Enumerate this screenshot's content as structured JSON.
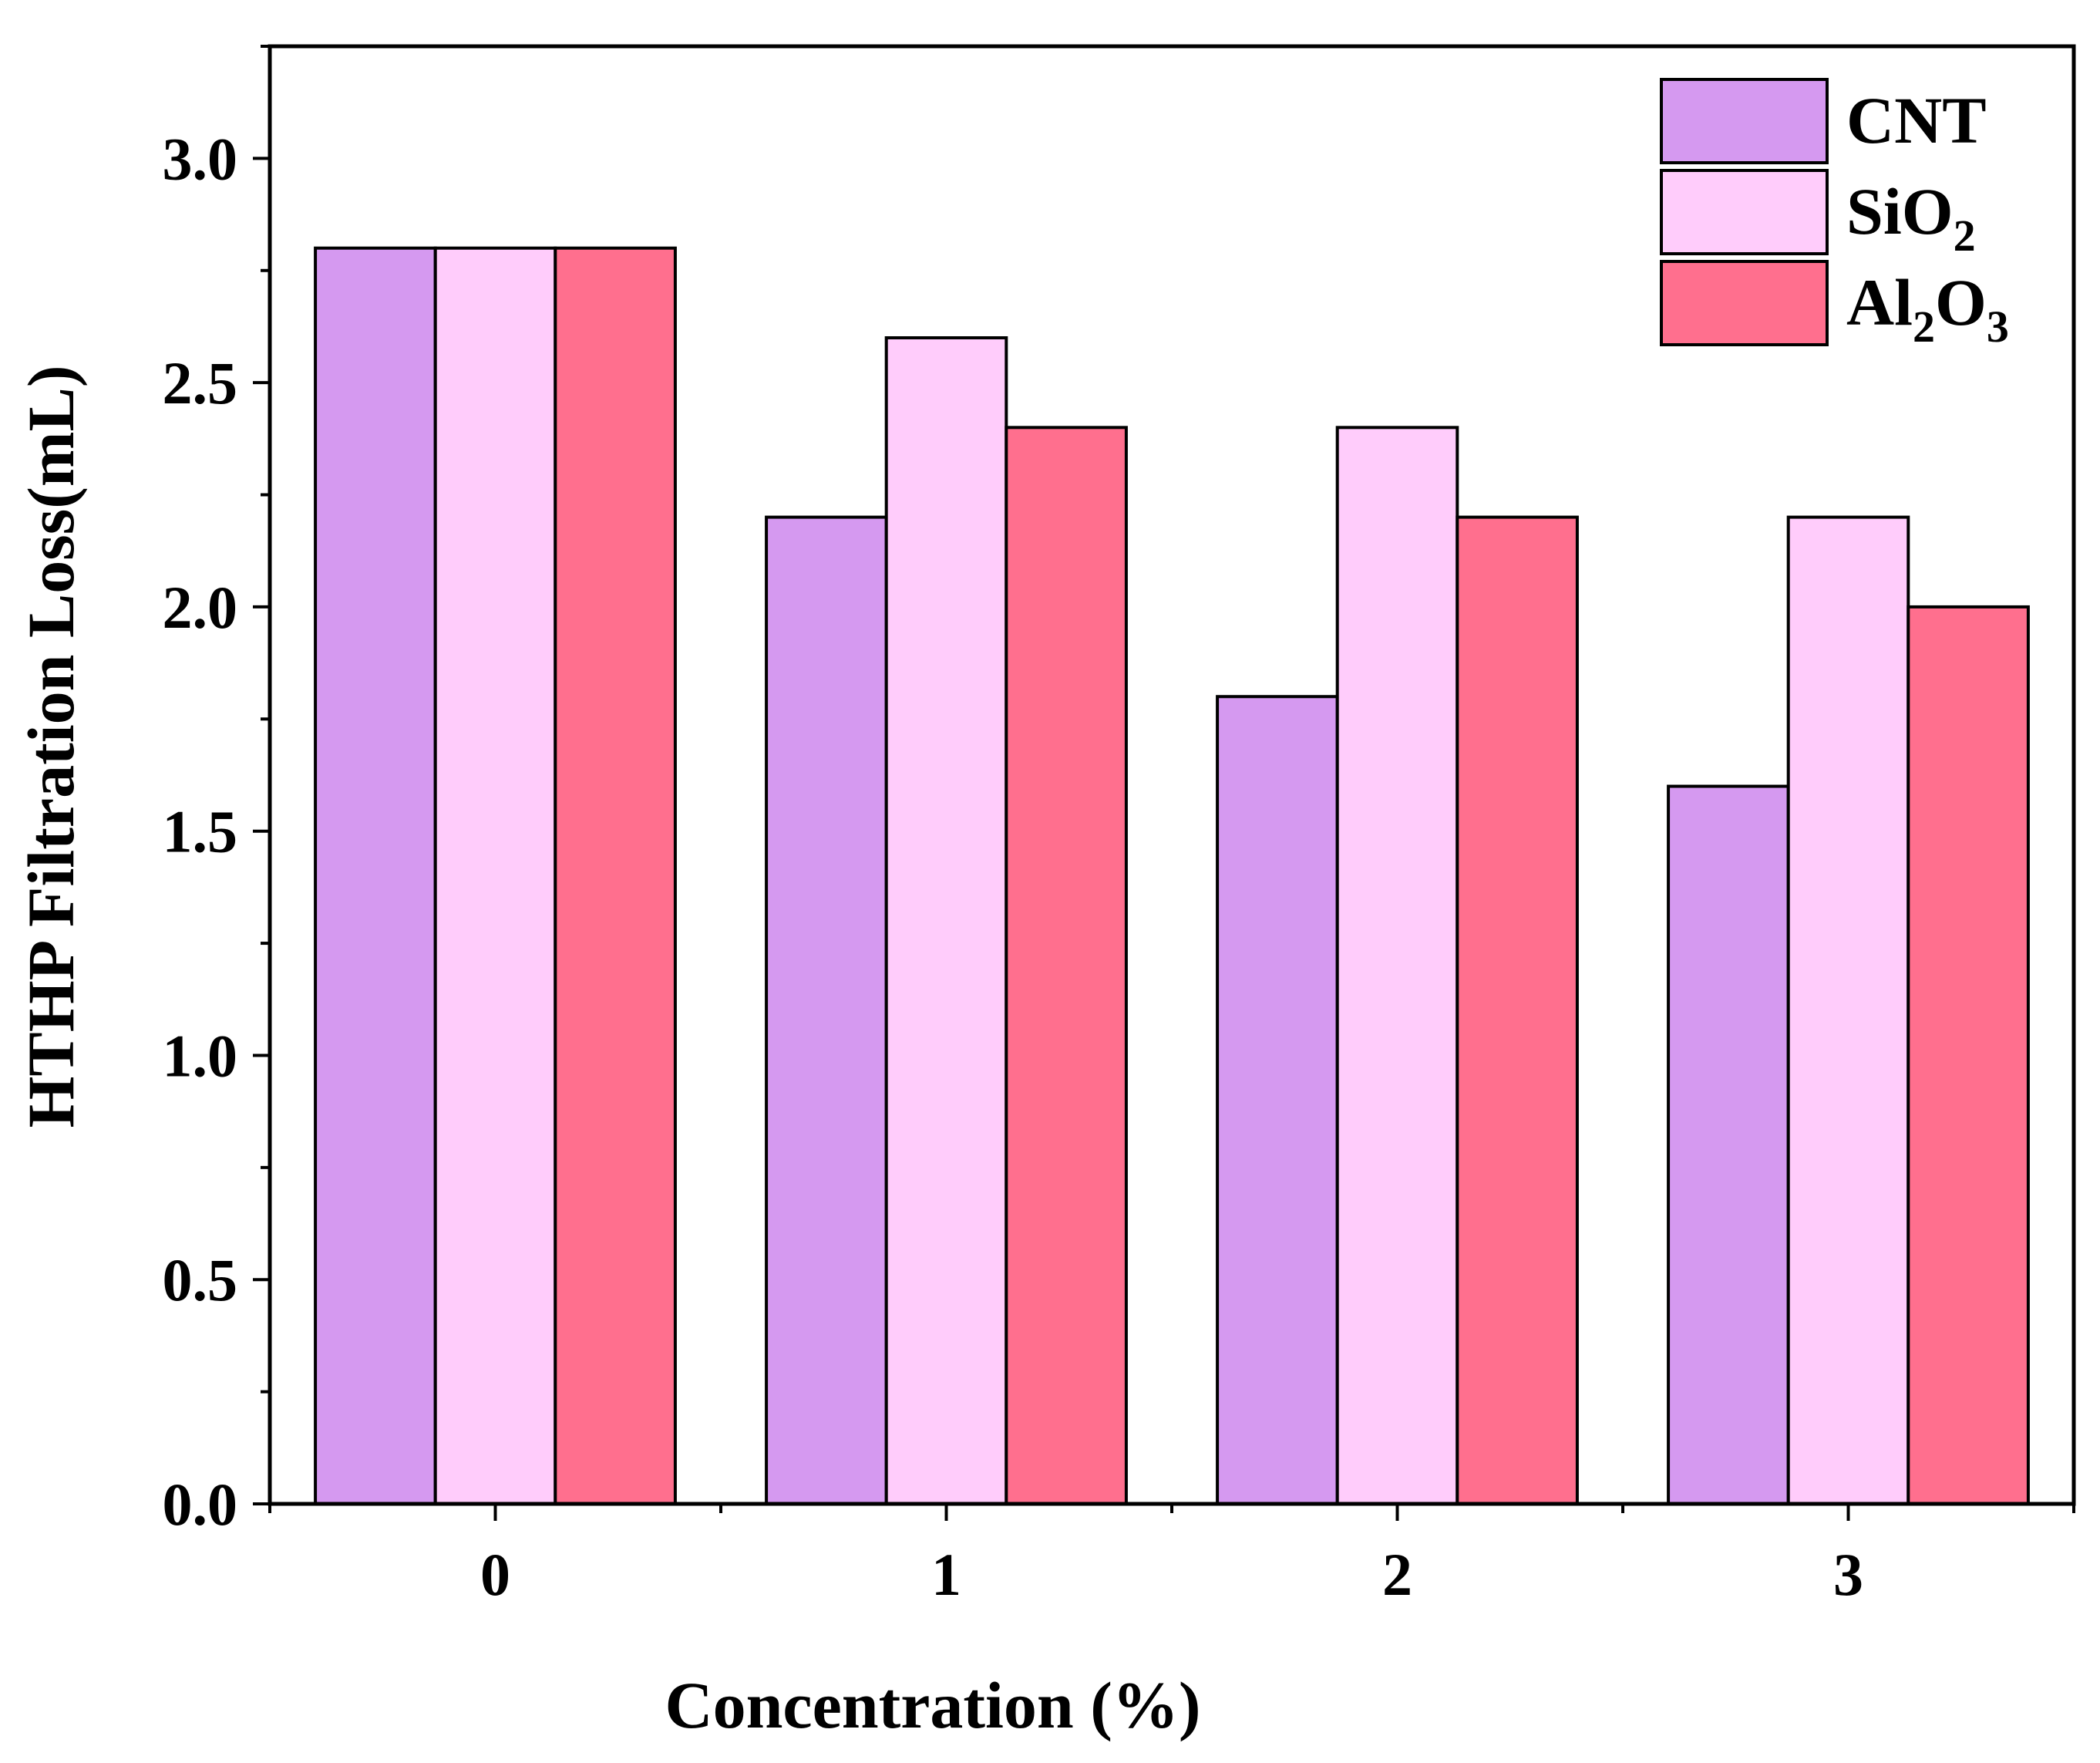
{
  "chart_data": {
    "type": "bar",
    "categories": [
      "0",
      "1",
      "2",
      "3"
    ],
    "series": [
      {
        "name": "CNT",
        "legend_main": "CNT",
        "legend_sub": "",
        "legend_tail": "",
        "legend_sub2": "",
        "color": "#D599F0",
        "values": [
          2.8,
          2.2,
          1.8,
          1.6
        ]
      },
      {
        "name": "SiO2",
        "legend_main": "SiO",
        "legend_sub": "2",
        "legend_tail": "",
        "legend_sub2": "",
        "color": "#FFCCFB",
        "values": [
          2.8,
          2.6,
          2.4,
          2.2
        ]
      },
      {
        "name": "Al2O3",
        "legend_main": "Al",
        "legend_sub": "2",
        "legend_tail": "O",
        "legend_sub2": "3",
        "color": "#FF6F8E",
        "values": [
          2.8,
          2.4,
          2.2,
          2.0
        ]
      }
    ],
    "xlabel": "Concentration (%)",
    "ylabel": "HTHP Filtration Loss(mL)",
    "ylim": [
      0,
      3.25
    ],
    "yticks": [
      "0.0",
      "0.5",
      "1.0",
      "1.5",
      "2.0",
      "2.5",
      "3.0"
    ],
    "legend_position": "top-right"
  }
}
